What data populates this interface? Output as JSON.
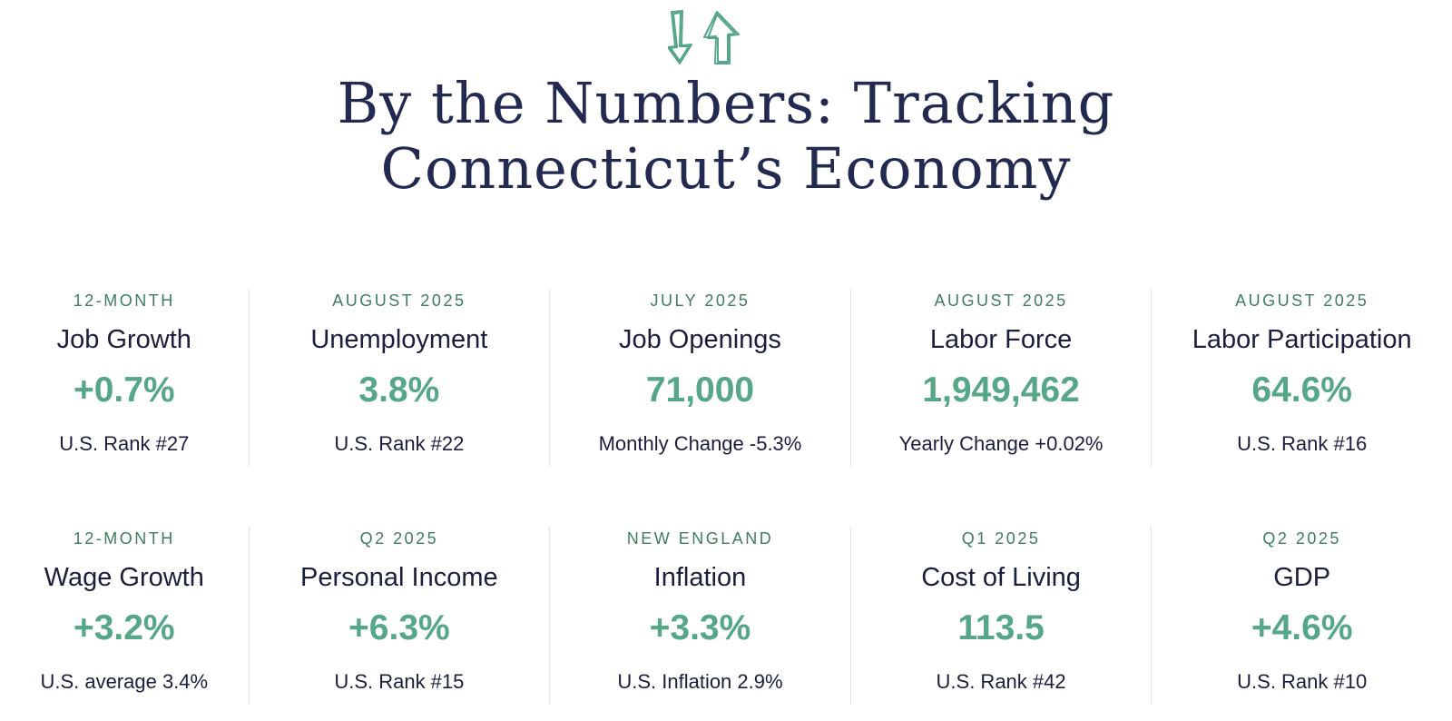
{
  "header": {
    "icon": "up-down-arrows-icon",
    "accent_color": "#55a787",
    "title_line1": "By the Numbers: Tracking",
    "title_line2": "Connecticut’s Economy"
  },
  "stats": [
    {
      "period": "12-MONTH",
      "label": "Job Growth",
      "value": "+0.7%",
      "note": "U.S. Rank #27"
    },
    {
      "period": "AUGUST 2025",
      "label": "Unemployment",
      "value": "3.8%",
      "note": "U.S. Rank #22"
    },
    {
      "period": "JULY 2025",
      "label": "Job Openings",
      "value": "71,000",
      "note": "Monthly Change -5.3%"
    },
    {
      "period": "AUGUST 2025",
      "label": "Labor Force",
      "value": "1,949,462",
      "note": "Yearly Change +0.02%"
    },
    {
      "period": "AUGUST 2025",
      "label": "Labor Participation",
      "value": "64.6%",
      "note": "U.S. Rank #16"
    },
    {
      "period": "12-MONTH",
      "label": "Wage Growth",
      "value": "+3.2%",
      "note": "U.S. average 3.4%"
    },
    {
      "period": "Q2 2025",
      "label": "Personal Income",
      "value": "+6.3%",
      "note": "U.S. Rank #15"
    },
    {
      "period": "NEW ENGLAND",
      "label": "Inflation",
      "value": "+3.3%",
      "note": "U.S. Inflation 2.9%"
    },
    {
      "period": "Q1 2025",
      "label": "Cost of Living",
      "value": "113.5",
      "note": "U.S. Rank #42"
    },
    {
      "period": "Q2 2025",
      "label": "GDP",
      "value": "+4.6%",
      "note": "U.S. Rank #10"
    }
  ]
}
